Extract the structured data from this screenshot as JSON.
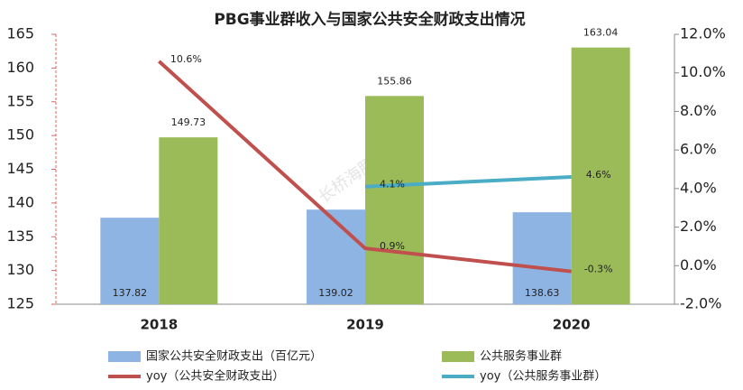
{
  "chart_data": {
    "type": "bar",
    "title": "PBG事业群收入与国家公共安全财政支出情况",
    "watermark": "长桥海豚投研",
    "categories": [
      "2018",
      "2019",
      "2020"
    ],
    "series": [
      {
        "name": "国家公共安全财政支出（百亿元）",
        "type": "bar",
        "color": "#8eb4e3",
        "values": [
          137.82,
          139.02,
          138.63
        ]
      },
      {
        "name": "公共服务事业群",
        "type": "bar",
        "color": "#9bbb59",
        "values": [
          149.73,
          155.86,
          163.04
        ]
      },
      {
        "name": "yoy（公共安全财政支出）",
        "type": "line",
        "axis": "y2",
        "color": "#c0504d",
        "values": [
          10.6,
          0.9,
          -0.3
        ],
        "value_labels": [
          "10.6%",
          "0.9%",
          "-0.3%"
        ]
      },
      {
        "name": "yoy（公共服务事业群）",
        "type": "line",
        "axis": "y2",
        "color": "#4bacc6",
        "values": [
          null,
          4.1,
          4.6
        ],
        "value_labels": [
          null,
          "4.1%",
          "4.6%"
        ]
      }
    ],
    "ylim": [
      125,
      165
    ],
    "yticks": [
      125,
      130,
      135,
      140,
      145,
      150,
      155,
      160,
      165
    ],
    "y2lim": [
      -2,
      12
    ],
    "y2ticks": [
      {
        "value": -2,
        "label": "-2.0%"
      },
      {
        "value": 0,
        "label": "0.0%"
      },
      {
        "value": 2,
        "label": "2.0%"
      },
      {
        "value": 4,
        "label": "4.0%"
      },
      {
        "value": 6,
        "label": "6.0%"
      },
      {
        "value": 8,
        "label": "8.0%"
      },
      {
        "value": 10,
        "label": "10.0%"
      },
      {
        "value": 12,
        "label": "12.0%"
      }
    ]
  }
}
